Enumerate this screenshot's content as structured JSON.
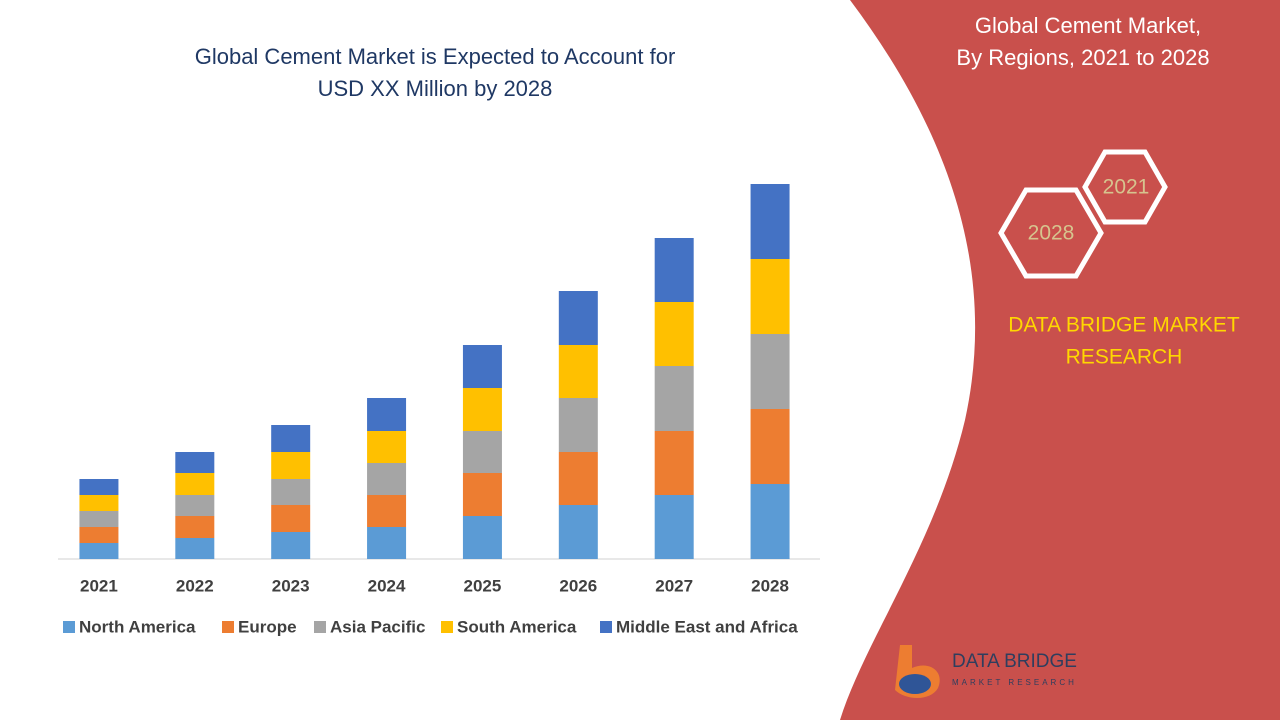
{
  "chart_data": {
    "type": "stacked_bar",
    "title": [
      "Global Cement Market is Expected to Account for",
      "USD XX Million by 2028"
    ],
    "categories": [
      "2021",
      "2022",
      "2023",
      "2024",
      "2025",
      "2026",
      "2027",
      "2028"
    ],
    "series": [
      {
        "name": "North America",
        "color": "#5b9bd5",
        "values": [
          16,
          21,
          27,
          32,
          43,
          54,
          64,
          75
        ]
      },
      {
        "name": "Europe",
        "color": "#ed7d31",
        "values": [
          16,
          22,
          27,
          32,
          43,
          53,
          64,
          75
        ]
      },
      {
        "name": "Asia Pacific",
        "color": "#a5a5a5",
        "values": [
          16,
          21,
          26,
          32,
          42,
          54,
          65,
          75
        ]
      },
      {
        "name": "South America",
        "color": "#ffc000",
        "values": [
          16,
          22,
          27,
          32,
          43,
          53,
          64,
          75
        ]
      },
      {
        "name": "Middle East and Africa",
        "color": "#4472c4",
        "values": [
          16,
          21,
          27,
          33,
          43,
          54,
          64,
          75
        ]
      }
    ]
  },
  "panel": {
    "heading": [
      "Global Cement Market,",
      "By Regions, 2021 to 2028"
    ],
    "hex_labels": [
      "2021",
      "2028"
    ],
    "brand": [
      "DATA BRIDGE MARKET",
      "RESEARCH"
    ],
    "logo": {
      "name": "DATA BRIDGE",
      "tagline": "MARKET RESEARCH"
    }
  }
}
